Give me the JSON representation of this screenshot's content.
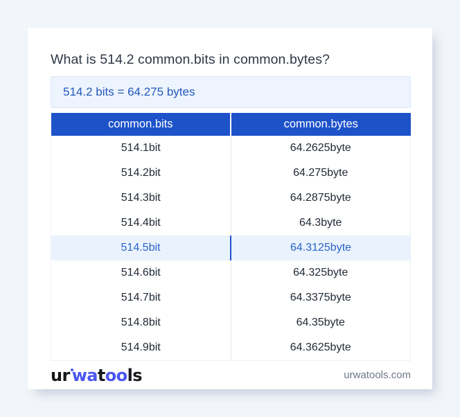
{
  "page": {
    "question": "What is 514.2 common.bits in common.bytes?",
    "answer": "514.2 bits = 64.275 bytes"
  },
  "table": {
    "headers": [
      "common.bits",
      "common.bytes"
    ],
    "rows": [
      [
        "514.1bit",
        "64.2625byte"
      ],
      [
        "514.2bit",
        "64.275byte"
      ],
      [
        "514.3bit",
        "64.2875byte"
      ],
      [
        "514.4bit",
        "64.3byte"
      ],
      [
        "514.5bit",
        "64.3125byte"
      ],
      [
        "514.6bit",
        "64.325byte"
      ],
      [
        "514.7bit",
        "64.3375byte"
      ],
      [
        "514.8bit",
        "64.35byte"
      ],
      [
        "514.9bit",
        "64.3625byte"
      ]
    ],
    "highlighted_row_index": 4
  },
  "footer": {
    "logo": {
      "seg1": "ur",
      "seg2": "wa",
      "seg3": "t",
      "seg4": "oo",
      "seg5": "ls"
    },
    "site_url": "urwatools.com"
  },
  "colors": {
    "accent_blue": "#1d52c9",
    "logo_blue": "#4a56f0",
    "highlight_bg": "#eaf3fd",
    "answer_bg": "#edf4fd",
    "answer_text": "#2458bb",
    "page_bg": "#f2f5f9"
  }
}
